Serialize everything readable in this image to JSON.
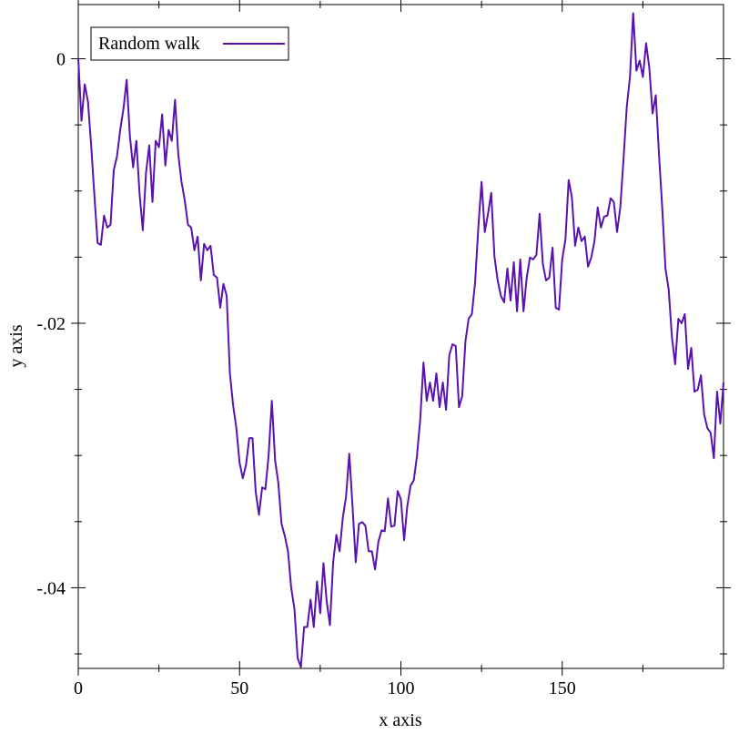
{
  "chart_data": {
    "type": "line",
    "xlabel": "x axis",
    "ylabel": "y axis",
    "x": [
      0,
      1,
      2,
      3,
      4,
      5,
      6,
      7,
      8,
      9,
      10,
      11,
      12,
      13,
      14,
      15,
      16,
      17,
      18,
      19,
      20,
      21,
      22,
      23,
      24,
      25,
      26,
      27,
      28,
      29,
      30,
      31,
      32,
      33,
      34,
      35,
      36,
      37,
      38,
      39,
      40,
      41,
      42,
      43,
      44,
      45,
      46,
      47,
      48,
      49,
      50,
      51,
      52,
      53,
      54,
      55,
      56,
      57,
      58,
      59,
      60,
      61,
      62,
      63,
      64,
      65,
      66,
      67,
      68,
      69,
      70,
      71,
      72,
      73,
      74,
      75,
      76,
      77,
      78,
      79,
      80,
      81,
      82,
      83,
      84,
      85,
      86,
      87,
      88,
      89,
      90,
      91,
      92,
      93,
      94,
      95,
      96,
      97,
      98,
      99,
      100,
      101,
      102,
      103,
      104,
      105,
      106,
      107,
      108,
      109,
      110,
      111,
      112,
      113,
      114,
      115,
      116,
      117,
      118,
      119,
      120,
      121,
      122,
      123,
      124,
      125,
      126,
      127,
      128,
      129,
      130,
      131,
      132,
      133,
      134,
      135,
      136,
      137,
      138,
      139,
      140,
      141,
      142,
      143,
      144,
      145,
      146,
      147,
      148,
      149,
      150,
      151,
      152,
      153,
      154,
      155,
      156,
      157,
      158,
      159,
      160,
      161,
      162,
      163,
      164,
      165,
      166,
      167,
      168,
      169,
      170,
      171,
      172,
      173,
      174,
      175,
      176,
      177,
      178,
      179,
      180,
      181,
      182,
      183,
      184,
      185,
      186,
      187,
      188,
      189,
      190,
      191,
      192,
      193,
      194,
      195,
      196,
      197,
      198,
      199,
      200
    ],
    "series": [
      {
        "name": "Random walk",
        "color": "#5a12ad",
        "values": [
          0,
          -0.00469,
          -0.00193,
          -0.00324,
          -0.00655,
          -0.01034,
          -0.01393,
          -0.01407,
          -0.01186,
          -0.01276,
          -0.01255,
          -0.00841,
          -0.00738,
          -0.00538,
          -0.00379,
          -0.00159,
          -0.00586,
          -0.00821,
          -0.00621,
          -0.01021,
          -0.01297,
          -0.00862,
          -0.00655,
          -0.01083,
          -0.00621,
          -0.00669,
          -0.00421,
          -0.00807,
          -0.00538,
          -0.00621,
          -0.0031,
          -0.00724,
          -0.00931,
          -0.01069,
          -0.01255,
          -0.01276,
          -0.01448,
          -0.01345,
          -0.01676,
          -0.014,
          -0.01448,
          -0.01414,
          -0.01634,
          -0.01655,
          -0.01883,
          -0.01703,
          -0.01793,
          -0.02379,
          -0.02621,
          -0.02793,
          -0.03055,
          -0.03172,
          -0.03069,
          -0.02869,
          -0.02869,
          -0.03276,
          -0.03448,
          -0.03241,
          -0.03255,
          -0.03,
          -0.02586,
          -0.03034,
          -0.03207,
          -0.03517,
          -0.03607,
          -0.03724,
          -0.04,
          -0.04159,
          -0.04531,
          -0.046,
          -0.04297,
          -0.04297,
          -0.0409,
          -0.04297,
          -0.03952,
          -0.04193,
          -0.03814,
          -0.04103,
          -0.04283,
          -0.03807,
          -0.036,
          -0.03724,
          -0.03469,
          -0.0331,
          -0.02986,
          -0.03379,
          -0.03807,
          -0.03517,
          -0.03503,
          -0.03531,
          -0.03724,
          -0.03724,
          -0.03862,
          -0.03655,
          -0.03566,
          -0.03572,
          -0.03324,
          -0.03538,
          -0.03531,
          -0.03269,
          -0.03331,
          -0.03641,
          -0.03379,
          -0.03228,
          -0.03186,
          -0.03,
          -0.02724,
          -0.02297,
          -0.02586,
          -0.02448,
          -0.02586,
          -0.02379,
          -0.02634,
          -0.02448,
          -0.02655,
          -0.02241,
          -0.02159,
          -0.02172,
          -0.02634,
          -0.02552,
          -0.02138,
          -0.01966,
          -0.01931,
          -0.0169,
          -0.01276,
          -0.00931,
          -0.0131,
          -0.01172,
          -0.01014,
          -0.01497,
          -0.01676,
          -0.01793,
          -0.01841,
          -0.01586,
          -0.01828,
          -0.01538,
          -0.0191,
          -0.01517,
          -0.0191,
          -0.01655,
          -0.01503,
          -0.01517,
          -0.01483,
          -0.01172,
          -0.01552,
          -0.01676,
          -0.01655,
          -0.01428,
          -0.01883,
          -0.01897,
          -0.01517,
          -0.01366,
          -0.00917,
          -0.01048,
          -0.01414,
          -0.01276,
          -0.01379,
          -0.01345,
          -0.01572,
          -0.01503,
          -0.01379,
          -0.01124,
          -0.01276,
          -0.01193,
          -0.01186,
          -0.01055,
          -0.01083,
          -0.0131,
          -0.01124,
          -0.00759,
          -0.00366,
          -0.00138,
          0.00345,
          -0.0009,
          -0.00014,
          -0.00138,
          0.00117,
          -0.00069,
          -0.00414,
          -0.00276,
          -0.00724,
          -0.01124,
          -0.01586,
          -0.01745,
          -0.02103,
          -0.0231,
          -0.01966,
          -0.02,
          -0.01931,
          -0.02345,
          -0.02186,
          -0.02517,
          -0.02503,
          -0.02393,
          -0.0269,
          -0.02793,
          -0.02828,
          -0.03021,
          -0.02517,
          -0.02759,
          -0.02448
        ]
      }
    ],
    "xlim": [
      0,
      200
    ],
    "ylim": [
      -0.0461,
      0.0041
    ],
    "xticks": [
      0,
      50,
      100,
      150
    ],
    "yticks": [
      {
        "value": 0,
        "label": "0"
      },
      {
        "value": -0.02,
        "label": "-.02"
      },
      {
        "value": -0.04,
        "label": "-.04"
      }
    ],
    "xminor_ticks": [
      25,
      75,
      125,
      175
    ],
    "yminor_ticks": [
      -0.005,
      -0.01,
      -0.015,
      -0.025,
      -0.03,
      -0.035,
      -0.045
    ],
    "legend": "top-left"
  }
}
